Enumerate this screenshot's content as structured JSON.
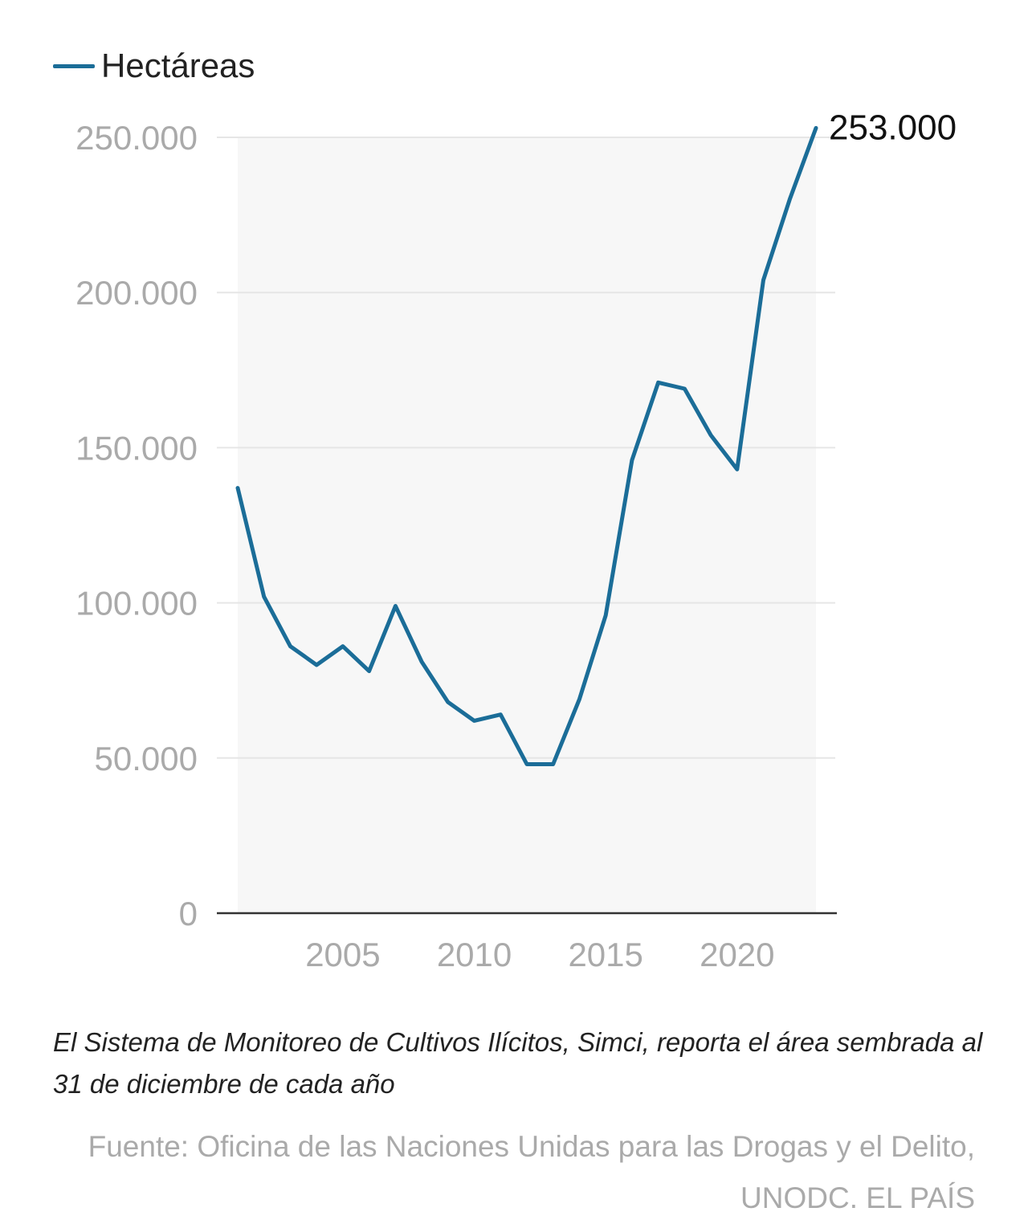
{
  "chart_data": {
    "type": "line",
    "legend": "Hectáreas",
    "legend_position": "top-left",
    "x": [
      2001,
      2002,
      2003,
      2004,
      2005,
      2006,
      2007,
      2008,
      2009,
      2010,
      2011,
      2012,
      2013,
      2014,
      2015,
      2016,
      2017,
      2018,
      2019,
      2020,
      2021,
      2022,
      2023
    ],
    "series": [
      {
        "name": "Hectáreas",
        "values": [
          137000,
          102000,
          86000,
          80000,
          86000,
          78000,
          99000,
          81000,
          68000,
          62000,
          64000,
          48000,
          48000,
          69000,
          96000,
          146000,
          171000,
          169000,
          154000,
          143000,
          204000,
          230000,
          253000
        ]
      }
    ],
    "end_label": "253.000",
    "yticks": [
      0,
      50000,
      100000,
      150000,
      200000,
      250000
    ],
    "ytick_labels": [
      "0",
      "50.000",
      "100.000",
      "150.000",
      "200.000",
      "250.000"
    ],
    "xticks": [
      2005,
      2010,
      2015,
      2020
    ],
    "xtick_labels": [
      "2005",
      "2010",
      "2015",
      "2020"
    ],
    "ylim": [
      0,
      250000
    ],
    "xlim": [
      2001,
      2023
    ],
    "grid": true,
    "colors": {
      "line": "#1b6d98",
      "grid": "#e6e6e6",
      "area_bg": "#f7f7f7",
      "ticks": "#aaaaaa"
    }
  },
  "caption": "El Sistema de Monitoreo de Cultivos Ilícitos, Simci, reporta el área sembrada al 31 de diciembre de cada año",
  "source": "Fuente: Oficina de las Naciones Unidas para las Drogas y el Delito, UNODC. EL PAÍS"
}
